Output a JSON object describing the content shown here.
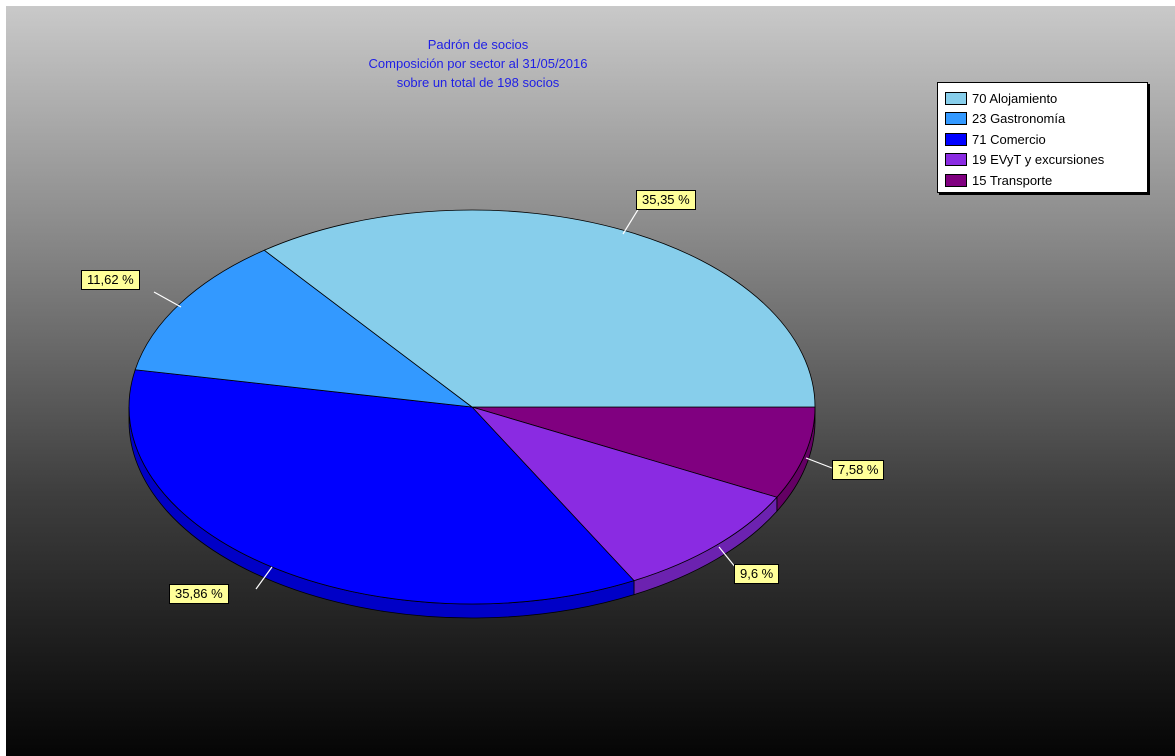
{
  "chart_data": {
    "type": "pie",
    "title_lines": [
      "Padrón de socios",
      "Composición por sector al 31/05/2016",
      "sobre un total de 198 socios"
    ],
    "total": 198,
    "slices": [
      {
        "label": "Alojamiento",
        "legend": "70 Alojamiento",
        "value": 70,
        "percent_label": "35,35 %",
        "color": "#87ceeb"
      },
      {
        "label": "Gastronomía",
        "legend": "23 Gastronomía",
        "value": 23,
        "percent_label": "11,62 %",
        "color": "#3399ff"
      },
      {
        "label": "Comercio",
        "legend": "71 Comercio",
        "value": 71,
        "percent_label": "35,86 %",
        "color": "#0000ff"
      },
      {
        "label": "EVyT y excursiones",
        "legend": "19 EVyT y excursiones",
        "value": 19,
        "percent_label": "9,6 %",
        "color": "#8a2be2"
      },
      {
        "label": "Transporte",
        "legend": "15 Transporte",
        "value": 15,
        "percent_label": "7,58 %",
        "color": "#800080"
      }
    ],
    "legend_position": "top-right",
    "style": "3d-tilted-pie"
  }
}
